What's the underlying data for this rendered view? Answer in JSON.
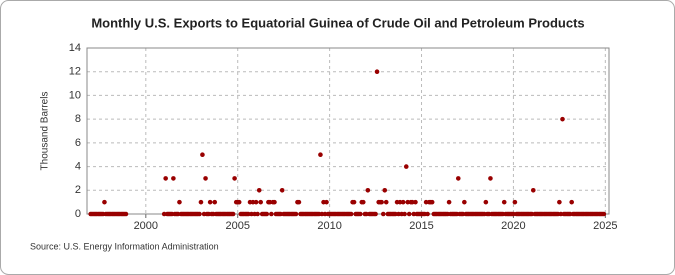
{
  "chart_data": {
    "type": "scatter",
    "title": "Monthly U.S. Exports to Equatorial Guinea of Crude Oil and Petroleum Products",
    "y_label": "Thousand Barrels",
    "source": "Source: U.S. Energy Information Administration",
    "color": "#990000",
    "xlim": [
      1996.8,
      2025.2
    ],
    "xticks": [
      2000,
      2005,
      2010,
      2015,
      2020,
      2025
    ],
    "ylim": [
      0,
      14
    ],
    "yticks": [
      0,
      2,
      4,
      6,
      8,
      10,
      12,
      14
    ],
    "grid": true,
    "x": [
      1997,
      1997.08,
      1997.17,
      1997.25,
      1997.33,
      1997.42,
      1997.5,
      1997.58,
      1997.67,
      1997.75,
      1997.83,
      1997.92,
      1998,
      1998.08,
      1998.17,
      1998.25,
      1998.33,
      1998.42,
      1998.5,
      1998.58,
      1998.67,
      1998.75,
      1998.83,
      1998.92,
      2001,
      2001.08,
      2001.17,
      2001.25,
      2001.33,
      2001.42,
      2001.5,
      2001.58,
      2001.67,
      2001.75,
      2001.83,
      2001.92,
      2002,
      2002.08,
      2002.17,
      2002.25,
      2002.33,
      2002.42,
      2002.5,
      2002.58,
      2002.67,
      2002.75,
      2002.83,
      2002.92,
      2003,
      2003.08,
      2003.17,
      2003.25,
      2003.33,
      2003.42,
      2003.5,
      2003.58,
      2003.67,
      2003.75,
      2003.83,
      2003.92,
      2004,
      2004.08,
      2004.17,
      2004.25,
      2004.33,
      2004.42,
      2004.5,
      2004.58,
      2004.67,
      2004.75,
      2004.83,
      2004.92,
      2005,
      2005.08,
      2005.17,
      2005.25,
      2005.33,
      2005.42,
      2005.5,
      2005.58,
      2005.67,
      2005.75,
      2005.83,
      2005.92,
      2006,
      2006.08,
      2006.17,
      2006.25,
      2006.33,
      2006.42,
      2006.5,
      2006.58,
      2006.67,
      2006.75,
      2006.83,
      2006.92,
      2007,
      2007.08,
      2007.17,
      2007.25,
      2007.33,
      2007.42,
      2007.5,
      2007.58,
      2007.67,
      2007.75,
      2007.83,
      2007.92,
      2008,
      2008.08,
      2008.17,
      2008.25,
      2008.33,
      2008.42,
      2008.5,
      2008.58,
      2008.67,
      2008.75,
      2008.83,
      2008.92,
      2009,
      2009.08,
      2009.17,
      2009.25,
      2009.33,
      2009.42,
      2009.5,
      2009.58,
      2009.67,
      2009.75,
      2009.83,
      2009.92,
      2010,
      2010.08,
      2010.17,
      2010.25,
      2010.33,
      2010.42,
      2010.5,
      2010.58,
      2010.67,
      2010.75,
      2010.83,
      2010.92,
      2011,
      2011.08,
      2011.17,
      2011.25,
      2011.33,
      2011.42,
      2011.5,
      2011.58,
      2011.67,
      2011.75,
      2011.83,
      2011.92,
      2012,
      2012.08,
      2012.17,
      2012.25,
      2012.33,
      2012.42,
      2012.5,
      2012.58,
      2012.67,
      2012.75,
      2012.83,
      2012.92,
      2013,
      2013.08,
      2013.17,
      2013.25,
      2013.33,
      2013.42,
      2013.5,
      2013.58,
      2013.67,
      2013.75,
      2013.83,
      2013.92,
      2014,
      2014.08,
      2014.17,
      2014.25,
      2014.33,
      2014.42,
      2014.5,
      2014.58,
      2014.67,
      2014.75,
      2014.83,
      2014.92,
      2015,
      2015.08,
      2015.17,
      2015.25,
      2015.33,
      2015.42,
      2015.5,
      2015.58,
      2015.67,
      2015.75,
      2015.83,
      2015.92,
      2016,
      2016.08,
      2016.17,
      2016.25,
      2016.33,
      2016.42,
      2016.5,
      2016.58,
      2016.67,
      2016.75,
      2016.83,
      2016.92,
      2017,
      2017.08,
      2017.17,
      2017.25,
      2017.33,
      2017.42,
      2017.5,
      2017.58,
      2017.67,
      2017.75,
      2017.83,
      2017.92,
      2018,
      2018.08,
      2018.17,
      2018.25,
      2018.33,
      2018.42,
      2018.5,
      2018.58,
      2018.67,
      2018.75,
      2018.83,
      2018.92,
      2019,
      2019.08,
      2019.17,
      2019.25,
      2019.33,
      2019.42,
      2019.5,
      2019.58,
      2019.67,
      2019.75,
      2019.83,
      2019.92,
      2020,
      2020.08,
      2020.17,
      2020.25,
      2020.33,
      2020.42,
      2020.5,
      2020.58,
      2020.67,
      2020.75,
      2020.83,
      2020.92,
      2021,
      2021.08,
      2021.17,
      2021.25,
      2021.33,
      2021.42,
      2021.5,
      2021.58,
      2021.67,
      2021.75,
      2021.83,
      2021.92,
      2022,
      2022.08,
      2022.17,
      2022.25,
      2022.33,
      2022.42,
      2022.5,
      2022.58,
      2022.67,
      2022.75,
      2022.83,
      2022.92,
      2023,
      2023.08,
      2023.17,
      2023.25,
      2023.33,
      2023.42,
      2023.5,
      2023.58,
      2023.67,
      2023.75,
      2023.83,
      2023.92,
      2024,
      2024.08,
      2024.17,
      2024.25,
      2024.33,
      2024.42,
      2024.5,
      2024.58,
      2024.67,
      2024.75,
      2024.83,
      2024.92
    ],
    "values": [
      0,
      0,
      0,
      0,
      0,
      0,
      0,
      0,
      0,
      1,
      0,
      0,
      0,
      0,
      0,
      0,
      0,
      0,
      0,
      0,
      0,
      0,
      0,
      0,
      0,
      3,
      0,
      0,
      0,
      0,
      3,
      0,
      0,
      0,
      1,
      0,
      0,
      0,
      0,
      0,
      0,
      0,
      0,
      0,
      0,
      0,
      0,
      0,
      1,
      5,
      0,
      3,
      0,
      0,
      1,
      0,
      0,
      1,
      0,
      0,
      0,
      0,
      0,
      0,
      0,
      0,
      0,
      0,
      0,
      0,
      3,
      1,
      1,
      1,
      0,
      0,
      0,
      0,
      0,
      0,
      1,
      0,
      1,
      0,
      1,
      0,
      2,
      1,
      0,
      0,
      0,
      0,
      1,
      1,
      0,
      1,
      1,
      0,
      0,
      0,
      0,
      2,
      0,
      0,
      0,
      0,
      0,
      0,
      0,
      0,
      0,
      1,
      1,
      0,
      0,
      0,
      0,
      0,
      0,
      0,
      0,
      0,
      0,
      0,
      0,
      0,
      5,
      0,
      1,
      0,
      1,
      0,
      0,
      0,
      0,
      0,
      0,
      0,
      0,
      0,
      0,
      0,
      0,
      0,
      0,
      0,
      0,
      1,
      1,
      0,
      0,
      0,
      0,
      1,
      1,
      0,
      0,
      2,
      0,
      0,
      0,
      0,
      0,
      12,
      1,
      1,
      1,
      0,
      2,
      1,
      0,
      0,
      0,
      0,
      0,
      0,
      1,
      0,
      1,
      0,
      1,
      0,
      4,
      1,
      0,
      1,
      1,
      0,
      1,
      0,
      0,
      0,
      0,
      0,
      0,
      1,
      0,
      1,
      1,
      1,
      0,
      0,
      0,
      0,
      0,
      0,
      0,
      0,
      0,
      0,
      1,
      0,
      0,
      0,
      0,
      0,
      3,
      0,
      0,
      0,
      1,
      0,
      0,
      0,
      0,
      0,
      0,
      0,
      0,
      0,
      0,
      0,
      0,
      0,
      1,
      0,
      0,
      3,
      0,
      0,
      0,
      0,
      0,
      0,
      0,
      0,
      1,
      0,
      0,
      0,
      0,
      0,
      0,
      1,
      0,
      0,
      0,
      0,
      0,
      0,
      0,
      0,
      0,
      0,
      0,
      2,
      0,
      0,
      0,
      0,
      0,
      0,
      0,
      0,
      0,
      0,
      0,
      0,
      0,
      0,
      0,
      0,
      1,
      0,
      8,
      0,
      0,
      0,
      0,
      0,
      1,
      0,
      0,
      0,
      0,
      0,
      0,
      0,
      0,
      0,
      0,
      0,
      0,
      0,
      0,
      0,
      0,
      0,
      0,
      0,
      0,
      0
    ]
  }
}
